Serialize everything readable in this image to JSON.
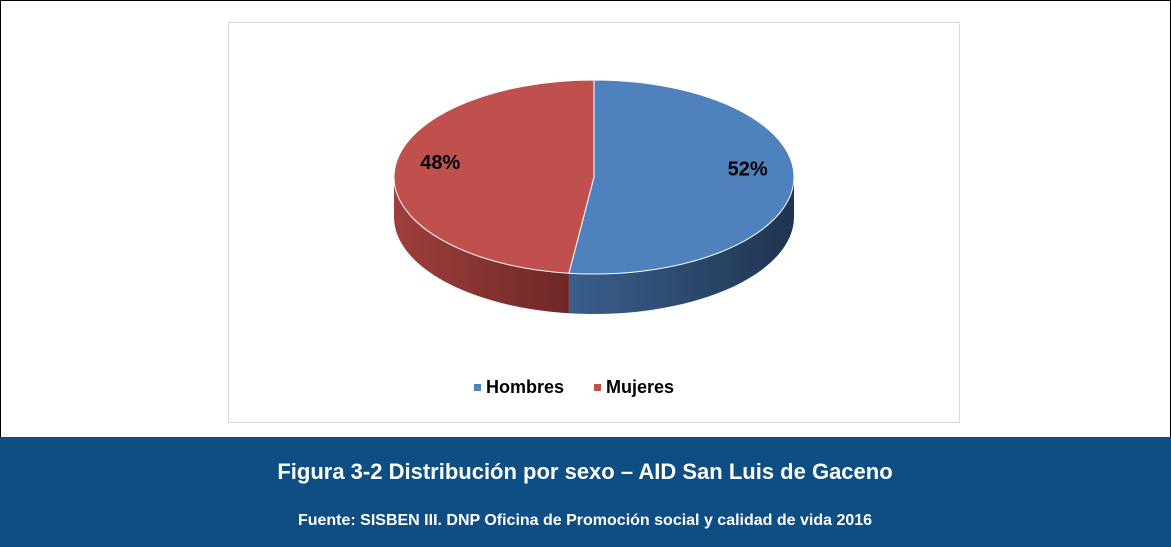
{
  "chart_data": {
    "type": "pie",
    "categories": [
      "Hombres",
      "Mujeres"
    ],
    "values": [
      52,
      48
    ],
    "value_labels": [
      "52%",
      "48%"
    ],
    "colors": [
      "#4f81bd",
      "#c0504d"
    ],
    "legend": "bottom"
  },
  "caption": {
    "title": "Figura 3-2 Distribución por  sexo – AID San Luis de Gaceno",
    "source": "Fuente: SISBEN III. DNP Oficina de Promoción social y calidad de vida 2016"
  }
}
